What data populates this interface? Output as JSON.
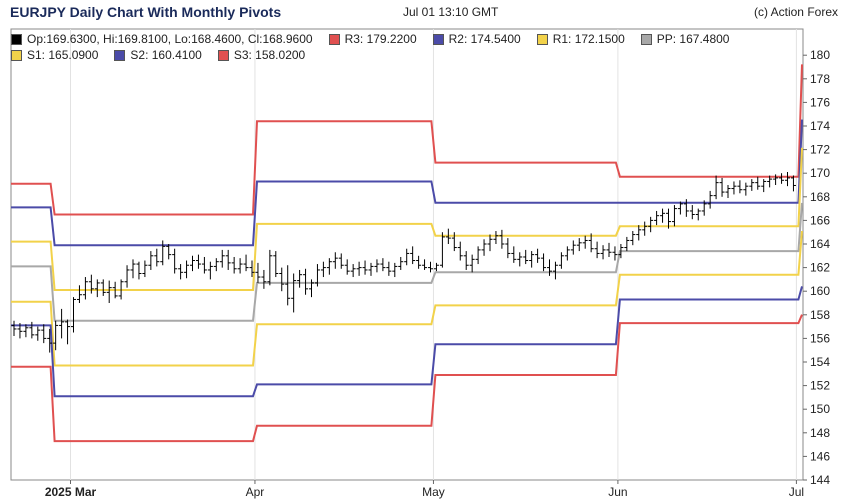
{
  "header": {
    "title": "EURJPY Daily Chart With Monthly Pivots",
    "timestamp": "Jul 01 13:10 GMT",
    "credit": "(c) Action Forex"
  },
  "legend": {
    "rows": [
      [
        {
          "label": "Op:169.6300, Hi:169.8100, Lo:168.4600, Cl:168.9600",
          "color": "#000000"
        },
        {
          "label": "R3: 179.2200",
          "color": "#e05050"
        },
        {
          "label": "R2: 174.5400",
          "color": "#4b4ba8"
        },
        {
          "label": "R1: 172.1500",
          "color": "#f2d24a"
        },
        {
          "label": "PP: 167.4800",
          "color": "#a8a8a8"
        }
      ],
      [
        {
          "label": "S1: 165.0900",
          "color": "#f2d24a"
        },
        {
          "label": "S2: 160.4100",
          "color": "#4b4ba8"
        },
        {
          "label": "S3: 158.0200",
          "color": "#e05050"
        }
      ]
    ]
  },
  "chart_data": {
    "type": "candlestick",
    "instrument": "EURJPY",
    "title": "EURJPY Daily Chart With Monthly Pivots",
    "ylim": [
      144,
      181
    ],
    "y_ticks": [
      144,
      146,
      148,
      150,
      152,
      154,
      156,
      158,
      160,
      162,
      164,
      166,
      168,
      170,
      172,
      174,
      176,
      178,
      180
    ],
    "y_axis_side": "right",
    "x_labels": [
      {
        "label": "2025 Mar",
        "day": 10,
        "bold": true
      },
      {
        "label": "Apr",
        "day": 41,
        "bold": false
      },
      {
        "label": "May",
        "day": 71,
        "bold": false
      },
      {
        "label": "Jun",
        "day": 102,
        "bold": false
      },
      {
        "label": "Jul",
        "day": 132,
        "bold": false
      }
    ],
    "x_range": [
      0,
      132
    ],
    "last_ohlc": {
      "open": 169.63,
      "high": 169.81,
      "low": 168.46,
      "close": 168.96
    },
    "pivot_levels": [
      {
        "name": "R3",
        "color": "#e05050",
        "values": [
          169.1,
          166.5,
          174.4,
          170.9,
          169.7,
          179.22
        ]
      },
      {
        "name": "R2",
        "color": "#4b4ba8",
        "values": [
          167.1,
          163.9,
          169.3,
          167.5,
          167.5,
          174.54
        ]
      },
      {
        "name": "R1",
        "color": "#f2d24a",
        "values": [
          164.2,
          160.1,
          165.7,
          164.7,
          165.5,
          172.15
        ]
      },
      {
        "name": "PP",
        "color": "#a8a8a8",
        "values": [
          162.1,
          157.5,
          160.7,
          161.6,
          163.4,
          167.48
        ]
      },
      {
        "name": "S1",
        "color": "#f2d24a",
        "values": [
          159.1,
          153.7,
          157.2,
          158.8,
          161.4,
          165.09
        ]
      },
      {
        "name": "S2",
        "color": "#4b4ba8",
        "values": [
          157.1,
          151.1,
          152.1,
          155.5,
          159.3,
          160.41
        ]
      },
      {
        "name": "S3",
        "color": "#e05050",
        "values": [
          153.6,
          147.3,
          148.6,
          152.9,
          157.3,
          158.02
        ]
      }
    ],
    "pivot_periods": [
      [
        0,
        7
      ],
      [
        7,
        41
      ],
      [
        41,
        71
      ],
      [
        71,
        102
      ],
      [
        102,
        132
      ],
      [
        132,
        133
      ]
    ],
    "series": [
      {
        "name": "candles",
        "bars": [
          [
            0,
            157.1,
            157.5,
            156.2,
            156.8
          ],
          [
            1,
            156.8,
            157.3,
            156.0,
            156.6
          ],
          [
            2,
            156.6,
            157.2,
            156.1,
            156.9
          ],
          [
            3,
            156.9,
            157.4,
            156.0,
            156.3
          ],
          [
            4,
            156.3,
            157.0,
            155.8,
            156.7
          ],
          [
            5,
            156.7,
            157.2,
            155.6,
            156.0
          ],
          [
            6,
            156.0,
            156.8,
            154.8,
            155.6
          ],
          [
            7,
            155.6,
            157.5,
            155.0,
            157.1
          ],
          [
            8,
            157.1,
            158.5,
            156.0,
            157.4
          ],
          [
            9,
            157.4,
            157.6,
            155.5,
            157.0
          ],
          [
            10,
            157.0,
            159.5,
            156.5,
            159.3
          ],
          [
            11,
            159.3,
            160.5,
            159.0,
            159.7
          ],
          [
            12,
            159.7,
            161.2,
            159.3,
            160.8
          ],
          [
            13,
            160.8,
            161.4,
            159.8,
            160.2
          ],
          [
            14,
            160.2,
            161.0,
            159.5,
            160.7
          ],
          [
            15,
            160.7,
            161.0,
            159.6,
            159.9
          ],
          [
            16,
            159.9,
            160.9,
            159.0,
            160.3
          ],
          [
            17,
            160.3,
            160.8,
            159.4,
            159.6
          ],
          [
            18,
            159.6,
            161.0,
            159.3,
            160.8
          ],
          [
            19,
            160.8,
            162.2,
            160.3,
            161.8
          ],
          [
            20,
            161.8,
            162.7,
            161.1,
            162.3
          ],
          [
            21,
            162.3,
            162.5,
            161.0,
            161.5
          ],
          [
            22,
            161.5,
            162.6,
            161.2,
            162.2
          ],
          [
            23,
            162.2,
            163.4,
            161.8,
            163.0
          ],
          [
            24,
            163.0,
            163.6,
            162.1,
            162.5
          ],
          [
            25,
            162.5,
            164.3,
            162.2,
            163.8
          ],
          [
            26,
            163.8,
            164.0,
            162.7,
            163.1
          ],
          [
            27,
            163.1,
            163.6,
            161.5,
            161.9
          ],
          [
            28,
            161.9,
            162.3,
            161.0,
            161.6
          ],
          [
            29,
            161.6,
            162.6,
            161.1,
            162.2
          ],
          [
            30,
            162.2,
            163.0,
            161.7,
            162.6
          ],
          [
            31,
            162.6,
            163.1,
            161.9,
            162.3
          ],
          [
            32,
            162.3,
            162.9,
            161.5,
            161.8
          ],
          [
            33,
            161.8,
            162.5,
            161.0,
            162.1
          ],
          [
            34,
            162.1,
            162.8,
            161.7,
            162.5
          ],
          [
            35,
            162.5,
            163.5,
            162.0,
            163.0
          ],
          [
            36,
            163.0,
            163.5,
            161.8,
            162.4
          ],
          [
            37,
            162.4,
            162.9,
            161.5,
            161.9
          ],
          [
            38,
            161.9,
            162.8,
            161.5,
            162.3
          ],
          [
            39,
            162.3,
            163.1,
            161.7,
            162.0
          ],
          [
            40,
            162.0,
            162.6,
            161.2,
            161.6
          ],
          [
            41,
            161.6,
            162.4,
            160.7,
            161.2
          ],
          [
            42,
            161.2,
            161.8,
            160.2,
            160.8
          ],
          [
            43,
            160.8,
            163.5,
            160.5,
            163.0
          ],
          [
            44,
            163.0,
            163.4,
            161.2,
            161.5
          ],
          [
            45,
            161.5,
            162.0,
            160.0,
            160.6
          ],
          [
            46,
            160.6,
            162.2,
            158.8,
            159.4
          ],
          [
            47,
            159.4,
            161.5,
            158.2,
            160.9
          ],
          [
            48,
            160.9,
            161.8,
            160.3,
            161.4
          ],
          [
            49,
            161.4,
            161.9,
            159.7,
            160.2
          ],
          [
            50,
            160.2,
            161.0,
            159.5,
            160.7
          ],
          [
            51,
            160.7,
            162.3,
            160.4,
            161.8
          ],
          [
            52,
            161.8,
            162.5,
            161.2,
            162.0
          ],
          [
            53,
            162.0,
            162.8,
            161.4,
            162.5
          ],
          [
            54,
            162.5,
            163.3,
            161.9,
            162.8
          ],
          [
            55,
            162.8,
            163.2,
            161.9,
            162.2
          ],
          [
            56,
            162.2,
            162.7,
            161.4,
            161.7
          ],
          [
            57,
            161.7,
            162.3,
            161.2,
            161.9
          ],
          [
            58,
            161.9,
            162.5,
            161.3,
            162.0
          ],
          [
            59,
            162.0,
            162.6,
            161.4,
            161.8
          ],
          [
            60,
            161.8,
            162.4,
            161.3,
            162.1
          ],
          [
            61,
            162.1,
            162.7,
            161.6,
            162.3
          ],
          [
            62,
            162.3,
            162.8,
            161.7,
            162.0
          ],
          [
            63,
            162.0,
            162.5,
            161.3,
            161.7
          ],
          [
            64,
            161.7,
            162.4,
            161.2,
            162.1
          ],
          [
            65,
            162.1,
            162.9,
            161.8,
            162.5
          ],
          [
            66,
            162.5,
            163.6,
            162.2,
            163.2
          ],
          [
            67,
            163.2,
            163.8,
            162.3,
            162.6
          ],
          [
            68,
            162.6,
            163.0,
            161.9,
            162.2
          ],
          [
            69,
            162.2,
            162.7,
            161.8,
            162.0
          ],
          [
            70,
            162.0,
            162.5,
            161.6,
            161.9
          ],
          [
            71,
            161.9,
            162.4,
            161.7,
            162.2
          ],
          [
            72,
            162.2,
            165.0,
            162.0,
            164.6
          ],
          [
            73,
            164.6,
            165.3,
            164.0,
            164.5
          ],
          [
            74,
            164.5,
            165.0,
            163.4,
            163.7
          ],
          [
            75,
            163.7,
            164.2,
            162.6,
            163.0
          ],
          [
            76,
            163.0,
            163.4,
            161.8,
            162.2
          ],
          [
            77,
            162.2,
            163.1,
            161.6,
            162.7
          ],
          [
            78,
            162.7,
            163.8,
            162.3,
            163.5
          ],
          [
            79,
            163.5,
            164.4,
            163.0,
            164.0
          ],
          [
            80,
            164.0,
            164.8,
            163.4,
            164.4
          ],
          [
            81,
            164.4,
            165.1,
            164.0,
            164.7
          ],
          [
            82,
            164.7,
            165.2,
            163.6,
            164.0
          ],
          [
            83,
            164.0,
            164.5,
            162.8,
            163.2
          ],
          [
            84,
            163.2,
            163.8,
            162.4,
            162.7
          ],
          [
            85,
            162.7,
            163.3,
            162.1,
            162.9
          ],
          [
            86,
            162.9,
            163.5,
            162.3,
            162.6
          ],
          [
            87,
            162.6,
            163.4,
            162.0,
            163.1
          ],
          [
            88,
            163.1,
            163.6,
            162.4,
            162.8
          ],
          [
            89,
            162.8,
            163.2,
            161.7,
            162.0
          ],
          [
            90,
            162.0,
            162.7,
            161.3,
            161.7
          ],
          [
            91,
            161.7,
            162.5,
            161.0,
            162.2
          ],
          [
            92,
            162.2,
            163.3,
            161.9,
            163.0
          ],
          [
            93,
            163.0,
            163.8,
            162.6,
            163.5
          ],
          [
            94,
            163.5,
            164.3,
            163.1,
            163.9
          ],
          [
            95,
            163.9,
            164.5,
            163.4,
            164.1
          ],
          [
            96,
            164.1,
            164.7,
            163.6,
            164.3
          ],
          [
            97,
            164.3,
            164.9,
            163.3,
            163.6
          ],
          [
            98,
            163.6,
            164.2,
            162.8,
            163.2
          ],
          [
            99,
            163.2,
            163.9,
            162.7,
            163.5
          ],
          [
            100,
            163.5,
            164.1,
            162.9,
            163.3
          ],
          [
            101,
            163.3,
            163.8,
            162.6,
            163.1
          ],
          [
            102,
            163.1,
            164.0,
            162.8,
            163.7
          ],
          [
            103,
            163.7,
            164.6,
            163.4,
            164.3
          ],
          [
            104,
            164.3,
            165.1,
            163.9,
            164.8
          ],
          [
            105,
            164.8,
            165.6,
            164.3,
            165.2
          ],
          [
            106,
            165.2,
            165.9,
            164.7,
            165.5
          ],
          [
            107,
            165.5,
            166.3,
            165.0,
            166.0
          ],
          [
            108,
            166.0,
            166.8,
            165.6,
            166.4
          ],
          [
            109,
            166.4,
            167.0,
            165.8,
            166.6
          ],
          [
            110,
            166.6,
            167.0,
            165.3,
            165.9
          ],
          [
            111,
            165.9,
            167.3,
            165.5,
            167.0
          ],
          [
            112,
            167.0,
            167.6,
            166.5,
            167.4
          ],
          [
            113,
            167.4,
            167.8,
            166.3,
            166.8
          ],
          [
            114,
            166.8,
            167.3,
            166.1,
            166.5
          ],
          [
            115,
            166.5,
            167.0,
            166.0,
            166.8
          ],
          [
            116,
            166.8,
            167.7,
            166.4,
            167.4
          ],
          [
            117,
            167.4,
            168.5,
            167.0,
            168.1
          ],
          [
            118,
            168.1,
            169.8,
            167.8,
            169.2
          ],
          [
            119,
            169.2,
            169.6,
            168.0,
            168.4
          ],
          [
            120,
            168.4,
            169.0,
            167.9,
            168.7
          ],
          [
            121,
            168.7,
            169.3,
            168.2,
            168.9
          ],
          [
            122,
            168.9,
            169.4,
            168.3,
            168.6
          ],
          [
            123,
            168.6,
            169.2,
            168.1,
            168.9
          ],
          [
            124,
            168.9,
            169.5,
            168.5,
            169.2
          ],
          [
            125,
            169.2,
            169.7,
            168.6,
            168.9
          ],
          [
            126,
            168.9,
            169.5,
            168.4,
            169.3
          ],
          [
            127,
            169.3,
            169.8,
            168.8,
            169.5
          ],
          [
            128,
            169.5,
            169.9,
            169.0,
            169.6
          ],
          [
            129,
            169.6,
            170.0,
            169.1,
            169.4
          ],
          [
            130,
            169.4,
            170.1,
            168.9,
            169.6
          ],
          [
            131,
            169.6,
            169.81,
            168.46,
            168.96
          ]
        ]
      }
    ]
  }
}
